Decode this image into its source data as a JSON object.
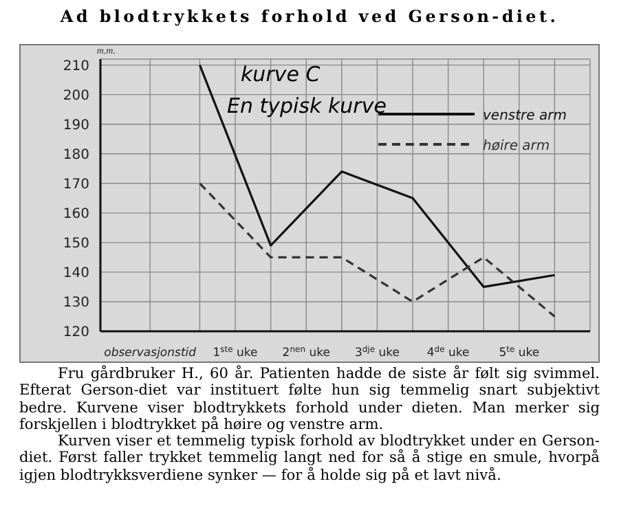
{
  "chart_data": {
    "type": "line",
    "title": "Ad blodtrykkets forhold ved Gerson-diet.",
    "ylabel": "m.m.",
    "x": [
      0,
      1,
      2,
      3,
      4,
      5
    ],
    "series": [
      {
        "name": "venstre arm",
        "color": "#111111",
        "line_style": "solid",
        "values": [
          210,
          149,
          174,
          165,
          135,
          139
        ]
      },
      {
        "name": "høire arm",
        "color": "#333333",
        "line_style": "dashed",
        "values": [
          170,
          145,
          145,
          130,
          145,
          125
        ]
      }
    ],
    "xlim": [
      -1.4,
      5.5
    ],
    "xticks": [
      {
        "value": -0.7,
        "label": "observasjonstid"
      },
      {
        "value": 0,
        "label": null
      },
      {
        "value": 0.5,
        "label": "1$^{ste}$ uke"
      },
      {
        "value": 1,
        "label": null
      },
      {
        "value": 1.5,
        "label": "2$^{nen}$ uke"
      },
      {
        "value": 2,
        "label": null
      },
      {
        "value": 2.5,
        "label": "3$^{dje}$ uke"
      },
      {
        "value": 3,
        "label": null
      },
      {
        "value": 3.5,
        "label": "4$^{de}$ uke"
      },
      {
        "value": 4,
        "label": null
      },
      {
        "value": 4.5,
        "label": "5$^{te}$ uke"
      },
      {
        "value": 5,
        "label": null
      }
    ],
    "ylim": [
      120,
      212
    ],
    "yticks": [
      120,
      130,
      140,
      150,
      160,
      170,
      180,
      190,
      200,
      210
    ],
    "grid": true,
    "legend": "top right",
    "marker": "none",
    "annotations": [
      "kurve C",
      "En typisk kurve",
      "Fru gårdbruker H., 60 år. Patienten hadde de siste år følt sig svimmel. Efterat Gerson-diet var instituert følte hun sig temmelig snart subjektivt bedre. Kurvene viser blodtrykkets forhold under dieten. Man merker sig forskjellen i blodtrykket på høire og venstre arm.",
      "Kurven viser et temmelig typisk forhold av blodtrykket under en Gerson-diet. Først faller trykket temmelig langt ned for så å stige en smule, hvorpå igjen blodtrykksverdiene synker — for å holde sig på et lavt nivå."
    ]
  }
}
